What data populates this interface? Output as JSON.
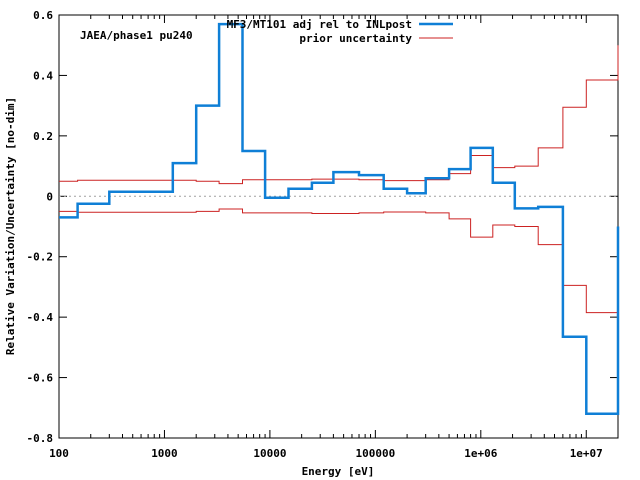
{
  "chart_data": {
    "type": "line",
    "step": true,
    "title": "",
    "annotation": "JAEA/phase1 pu240",
    "xlabel": "Energy [eV]",
    "ylabel": "Relative Variation/Uncertainty [no-dim]",
    "xscale": "log",
    "xlim": [
      100,
      20000000
    ],
    "ylim": [
      -0.8,
      0.6
    ],
    "xticks": [
      100,
      1000,
      10000,
      100000,
      1000000,
      10000000
    ],
    "xtick_labels": [
      "100",
      "1000",
      "10000",
      "100000",
      "1e+06",
      "1e+07"
    ],
    "yticks": [
      -0.8,
      -0.6,
      -0.4,
      -0.2,
      0,
      0.2,
      0.4,
      0.6
    ],
    "ytick_labels": [
      "-0.8",
      "-0.6",
      "-0.4",
      "-0.2",
      "0",
      "0.2",
      "0.4",
      "0.6"
    ],
    "zero_line": true,
    "grid": false,
    "legend_position": "top-right",
    "bin_edges": [
      100,
      150,
      300,
      700,
      1200,
      2000,
      3300,
      5500,
      9000,
      15000,
      25000,
      40000,
      70000,
      120000,
      200000,
      300000,
      500000,
      800000,
      1300000,
      2100000,
      3500000,
      6000000,
      10000000,
      20000000
    ],
    "series": [
      {
        "name": "MF3/MT101 adj rel to INLpost",
        "color": "#0f7fd6",
        "values": [
          -0.07,
          -0.025,
          0.015,
          0.015,
          0.11,
          0.3,
          0.57,
          0.15,
          -0.005,
          0.025,
          0.045,
          0.08,
          0.07,
          0.025,
          0.01,
          0.06,
          0.09,
          0.16,
          0.045,
          -0.04,
          -0.035,
          -0.465,
          -0.72,
          -0.1
        ]
      },
      {
        "name": "prior uncertainty",
        "color": "#cc2222",
        "mirrored": true,
        "values": [
          0.05,
          0.053,
          0.053,
          0.053,
          0.053,
          0.05,
          0.042,
          0.055,
          0.055,
          0.055,
          0.057,
          0.057,
          0.055,
          0.052,
          0.052,
          0.055,
          0.075,
          0.135,
          0.095,
          0.1,
          0.16,
          0.295,
          0.385,
          0.5
        ]
      }
    ]
  }
}
